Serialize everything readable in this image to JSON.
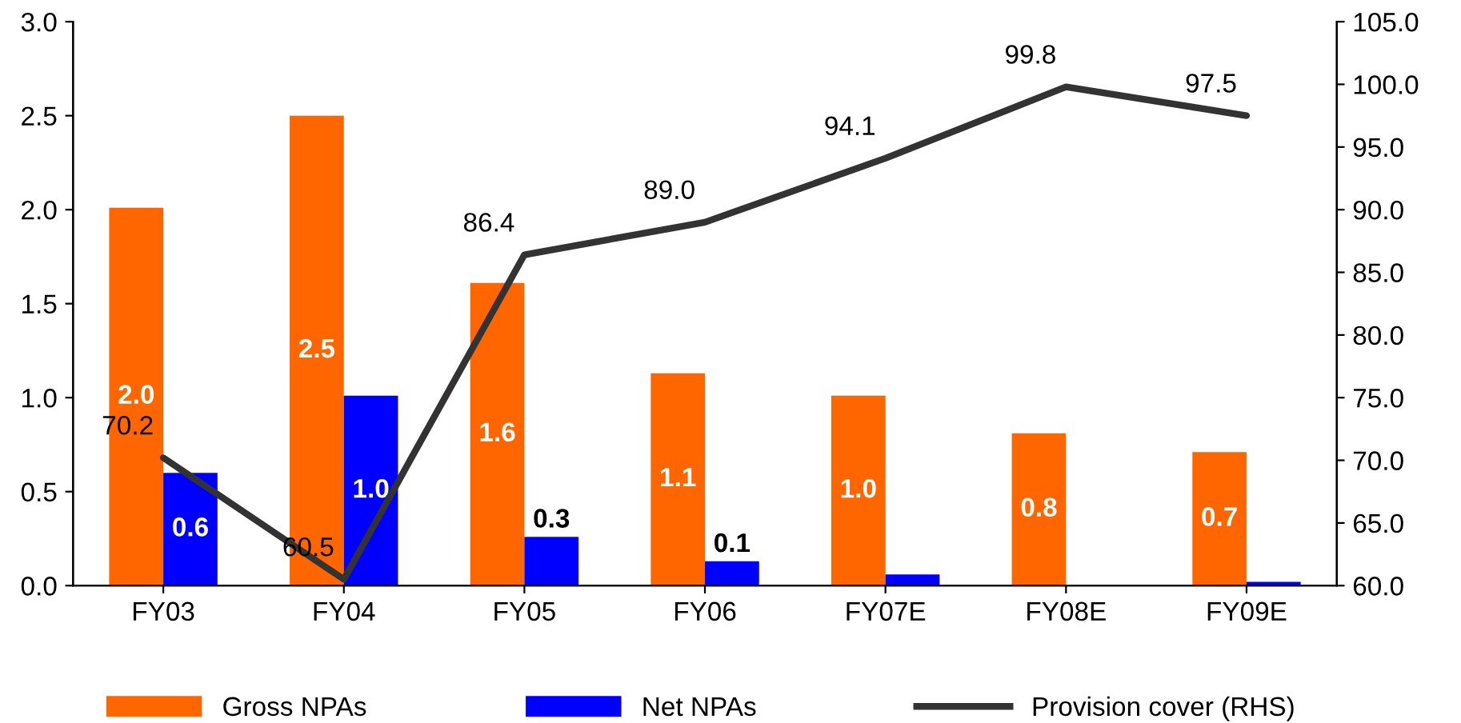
{
  "chart_data": {
    "type": "bar",
    "categories": [
      "FY03",
      "FY04",
      "FY05",
      "FY06",
      "FY07E",
      "FY08E",
      "FY09E"
    ],
    "series": [
      {
        "name": "Gross NPAs",
        "color": "#ff6600",
        "values": [
          2.01,
          2.5,
          1.61,
          1.13,
          1.01,
          0.81,
          0.71
        ],
        "value_labels": [
          "2.0",
          "2.5",
          "1.6",
          "1.1",
          "1.0",
          "0.8",
          "0.7"
        ]
      },
      {
        "name": "Net NPAs",
        "color": "#0000ff",
        "values": [
          0.6,
          1.01,
          0.26,
          0.13,
          0.06,
          0.0,
          0.02
        ],
        "value_labels": [
          "0.6",
          "1.0",
          "0.3",
          "0.1",
          null,
          null,
          null
        ]
      },
      {
        "name": "Provision cover (RHS)",
        "type": "line",
        "axis": "y2",
        "color": "#333333",
        "values": [
          70.2,
          60.5,
          86.4,
          89.0,
          94.1,
          99.8,
          97.5
        ],
        "value_labels": [
          "70.2",
          "60.5",
          "86.4",
          "89.0",
          "94.1",
          "99.8",
          "97.5"
        ]
      }
    ],
    "ylim": [
      0,
      3.0
    ],
    "yticks": [
      {
        "value": 0,
        "label": "0.0"
      },
      {
        "value": 0.5,
        "label": "0.5"
      },
      {
        "value": 1.0,
        "label": "1.0"
      },
      {
        "value": 1.5,
        "label": "1.5"
      },
      {
        "value": 2.0,
        "label": "2.0"
      },
      {
        "value": 2.5,
        "label": "2.5"
      },
      {
        "value": 3.0,
        "label": "3.0"
      }
    ],
    "y2lim": [
      60,
      105
    ],
    "y2ticks": [
      {
        "value": 60,
        "label": "60.0"
      },
      {
        "value": 65,
        "label": "65.0"
      },
      {
        "value": 70,
        "label": "70.0"
      },
      {
        "value": 75,
        "label": "75.0"
      },
      {
        "value": 80,
        "label": "80.0"
      },
      {
        "value": 85,
        "label": "85.0"
      },
      {
        "value": 90,
        "label": "90.0"
      },
      {
        "value": 95,
        "label": "95.0"
      },
      {
        "value": 100,
        "label": "100.0"
      },
      {
        "value": 105,
        "label": "105.0"
      }
    ],
    "grid": false,
    "legend": "bottom",
    "line_style": "solid",
    "marker": "none"
  }
}
